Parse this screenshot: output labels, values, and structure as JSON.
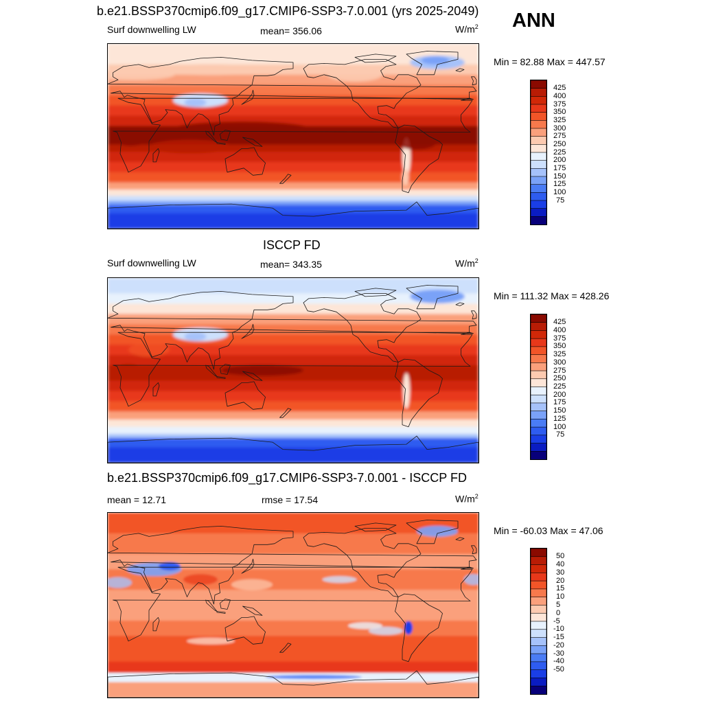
{
  "header": {
    "title_top": "b.e21.BSSP370cmip6.f09_g17.CMIP6-SSP3-7.0.001 (yrs 2025-2049)",
    "season": "ANN"
  },
  "colors": {
    "abs_scale": [
      "#08007a",
      "#0a1cc2",
      "#1a3ee6",
      "#2e5cf0",
      "#4a7cf5",
      "#7aa2f8",
      "#a6c2fa",
      "#cde0fc",
      "#e8f2fd",
      "#fde6d8",
      "#fccab0",
      "#faa07c",
      "#f7794c",
      "#f25528",
      "#e8381a",
      "#d12808",
      "#b81c05",
      "#8a0a00"
    ],
    "diff_scale": [
      "#08007a",
      "#0a1cc2",
      "#1a3ee6",
      "#2e5cf0",
      "#4a7cf5",
      "#7aa2f8",
      "#a6c2fa",
      "#cde0fc",
      "#e8f2fd",
      "#fde6d8",
      "#fccab0",
      "#faa07c",
      "#f7794c",
      "#f25528",
      "#e8381a",
      "#d12808",
      "#b81c05",
      "#8a0a00"
    ],
    "coast": "#1a1a1a"
  },
  "chart_data": [
    {
      "type": "heatmap",
      "panel": "model",
      "left_label": "Surf downwelling LW",
      "stat_label": "mean=",
      "stat_value": "356.06",
      "unit": "W/m",
      "unit_exp": "2",
      "min_label": "Min =",
      "min_value": "82.88",
      "max_label": "Max =",
      "max_value": "447.57",
      "colorbar_ticks": [
        "425",
        "400",
        "375",
        "350",
        "325",
        "300",
        "275",
        "250",
        "225",
        "200",
        "175",
        "150",
        "125",
        "100",
        "75"
      ]
    },
    {
      "type": "heatmap",
      "panel": "obs",
      "title": "ISCCP FD",
      "left_label": "Surf downwelling LW",
      "stat_label": "mean=",
      "stat_value": "343.35",
      "unit": "W/m",
      "unit_exp": "2",
      "min_label": "Min =",
      "min_value": "111.32",
      "max_label": "Max =",
      "max_value": "428.26",
      "colorbar_ticks": [
        "425",
        "400",
        "375",
        "350",
        "325",
        "300",
        "275",
        "250",
        "225",
        "200",
        "175",
        "150",
        "125",
        "100",
        "75"
      ]
    },
    {
      "type": "heatmap",
      "panel": "diff",
      "title": "b.e21.BSSP370cmip6.f09_g17.CMIP6-SSP3-7.0.001 - ISCCP FD",
      "left_label": "mean =",
      "left_value": "12.71",
      "stat_label": "rmse =",
      "stat_value": "17.54",
      "unit": "W/m",
      "unit_exp": "2",
      "min_label": "Min =",
      "min_value": "-60.03",
      "max_label": "Max =",
      "max_value": "47.06",
      "colorbar_ticks": [
        "50",
        "40",
        "30",
        "20",
        "15",
        "10",
        "5",
        "0",
        "-5",
        "-10",
        "-15",
        "-20",
        "-30",
        "-40",
        "-50"
      ]
    }
  ]
}
